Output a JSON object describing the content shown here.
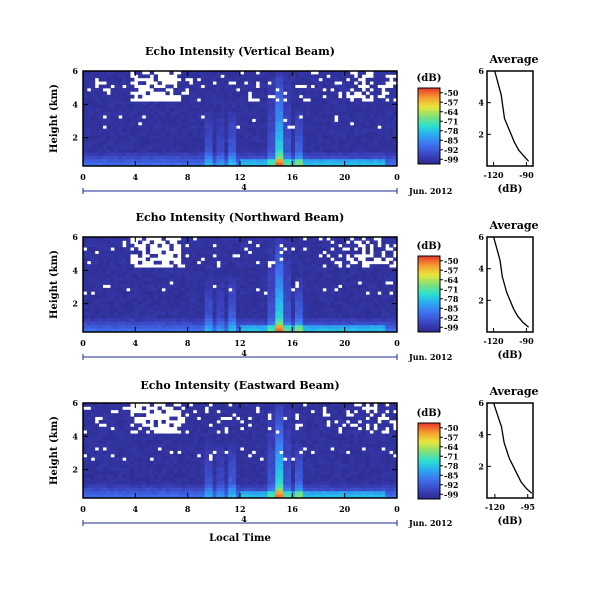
{
  "chart_data": [
    {
      "type": "heatmap",
      "title": "Echo Intensity (Vertical Beam)",
      "xlabel": "",
      "ylabel": "Height (km)",
      "x_ticks": [
        "0",
        "4",
        "8",
        "12",
        "16",
        "20",
        "0"
      ],
      "x_range": [
        0,
        24
      ],
      "y_ticks": [
        "6",
        "4",
        "2"
      ],
      "y_range": [
        0.3,
        6
      ],
      "date_label": "Jun. 2012",
      "day_marker": "4",
      "colorbar": {
        "unit": "(dB)",
        "ticks": [
          "-50",
          "-57",
          "-64",
          "-71",
          "-78",
          "-85",
          "-92",
          "-99"
        ],
        "range": [
          -99,
          -50
        ]
      },
      "average_profile": {
        "title": "Average",
        "xlabel": "(dB)",
        "x_ticks": [
          "-120",
          "-90"
        ],
        "x_range": [
          -126,
          -84
        ],
        "y_ticks": [
          "6",
          "4",
          "2"
        ],
        "y_range": [
          0,
          6
        ],
        "profile": [
          [
            -88,
            0.3
          ],
          [
            -92,
            0.6
          ],
          [
            -97,
            1
          ],
          [
            -101,
            1.5
          ],
          [
            -104,
            2
          ],
          [
            -107,
            2.5
          ],
          [
            -110,
            3
          ],
          [
            -111,
            3.5
          ],
          [
            -112,
            4
          ],
          [
            -113,
            4.5
          ],
          [
            -115,
            5
          ],
          [
            -117,
            5.5
          ],
          [
            -119,
            6
          ]
        ]
      }
    },
    {
      "type": "heatmap",
      "title": "Echo Intensity (Northward Beam)",
      "xlabel": "",
      "ylabel": "Height (km)",
      "x_ticks": [
        "0",
        "4",
        "8",
        "12",
        "16",
        "20",
        "0"
      ],
      "x_range": [
        0,
        24
      ],
      "y_ticks": [
        "6",
        "4",
        "2"
      ],
      "y_range": [
        0.3,
        6
      ],
      "date_label": "Jun. 2012",
      "day_marker": "4",
      "colorbar": {
        "unit": "(dB)",
        "ticks": [
          "-50",
          "-57",
          "-64",
          "-71",
          "-78",
          "-85",
          "-92",
          "-99"
        ],
        "range": [
          -99,
          -50
        ]
      },
      "average_profile": {
        "title": "Average",
        "xlabel": "(dB)",
        "x_ticks": [
          "-120",
          "-90"
        ],
        "x_range": [
          -126,
          -84
        ],
        "y_ticks": [
          "6",
          "4",
          "2"
        ],
        "y_range": [
          0,
          6
        ],
        "profile": [
          [
            -88,
            0.3
          ],
          [
            -93,
            0.6
          ],
          [
            -98,
            1
          ],
          [
            -102,
            1.5
          ],
          [
            -105,
            2
          ],
          [
            -108,
            2.5
          ],
          [
            -110,
            3
          ],
          [
            -112,
            3.5
          ],
          [
            -113,
            4
          ],
          [
            -114,
            4.5
          ],
          [
            -116,
            5
          ],
          [
            -118,
            5.5
          ],
          [
            -120,
            6
          ]
        ]
      }
    },
    {
      "type": "heatmap",
      "title": "Echo Intensity (Eastward Beam)",
      "xlabel": "Local Time",
      "ylabel": "Height (km)",
      "x_ticks": [
        "0",
        "4",
        "8",
        "12",
        "16",
        "20",
        "0"
      ],
      "x_range": [
        0,
        24
      ],
      "y_ticks": [
        "6",
        "4",
        "2"
      ],
      "y_range": [
        0.3,
        6
      ],
      "date_label": "Jun. 2012",
      "day_marker": "4",
      "colorbar": {
        "unit": "(dB)",
        "ticks": [
          "-50",
          "-57",
          "-64",
          "-71",
          "-78",
          "-85",
          "-92",
          "-99"
        ],
        "range": [
          -99,
          -50
        ]
      },
      "average_profile": {
        "title": "Average",
        "xlabel": "(dB)",
        "x_ticks": [
          "-120",
          "-95"
        ],
        "x_range": [
          -126,
          -91
        ],
        "y_ticks": [
          "6",
          "4",
          "2"
        ],
        "y_range": [
          0,
          6
        ],
        "profile": [
          [
            -92,
            0.3
          ],
          [
            -96,
            0.6
          ],
          [
            -100,
            1
          ],
          [
            -103,
            1.5
          ],
          [
            -106,
            2
          ],
          [
            -109,
            2.5
          ],
          [
            -111,
            3
          ],
          [
            -113,
            3.5
          ],
          [
            -114,
            4
          ],
          [
            -115,
            4.5
          ],
          [
            -117,
            5
          ],
          [
            -119,
            5.5
          ],
          [
            -121,
            6
          ]
        ]
      }
    }
  ]
}
